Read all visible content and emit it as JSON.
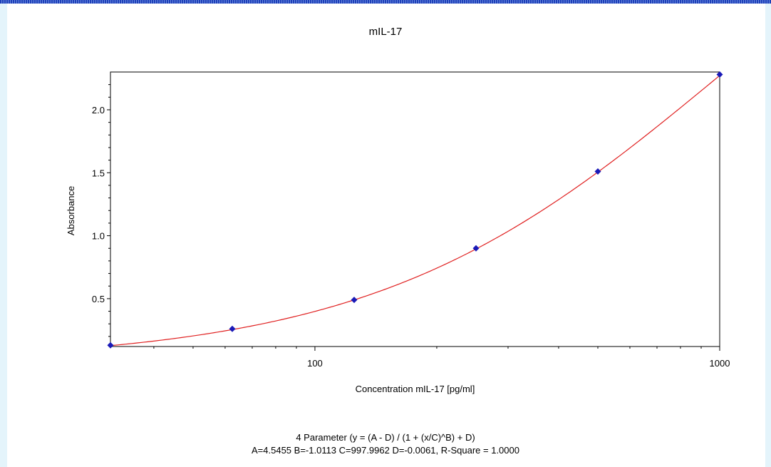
{
  "chart_data": {
    "type": "scatter",
    "title": "mIL-17",
    "xlabel": "Concentration mIL-17 [pg/ml]",
    "ylabel": "Absorbance",
    "x_scale": "log",
    "xlim": [
      31.25,
      1000
    ],
    "ylim": [
      0.12,
      2.3
    ],
    "x_ticks": [
      100,
      1000
    ],
    "x_tick_labels": [
      "100",
      "1000"
    ],
    "y_ticks": [
      0.5,
      1.0,
      1.5,
      2.0
    ],
    "y_tick_labels": [
      "0.5",
      "1.0",
      "1.5",
      "2.0"
    ],
    "grid": false,
    "series": [
      {
        "type": "scatter",
        "color": "#1a1ab8",
        "x": [
          31.25,
          62.5,
          125,
          250,
          500,
          1000
        ],
        "y": [
          0.13,
          0.26,
          0.49,
          0.9,
          1.51,
          2.28
        ]
      },
      {
        "type": "line",
        "color": "#e02020",
        "model": "4pl",
        "params": {
          "A": 4.5455,
          "B": -1.0113,
          "C": 997.9962,
          "D": -0.0061
        }
      }
    ],
    "annotations": [
      "4 Parameter (y = (A - D) / (1 + (x/C)^B) + D)",
      "A=4.5455  B=-1.0113  C=997.9962  D=-0.0061, R-Square = 1.0000"
    ]
  }
}
